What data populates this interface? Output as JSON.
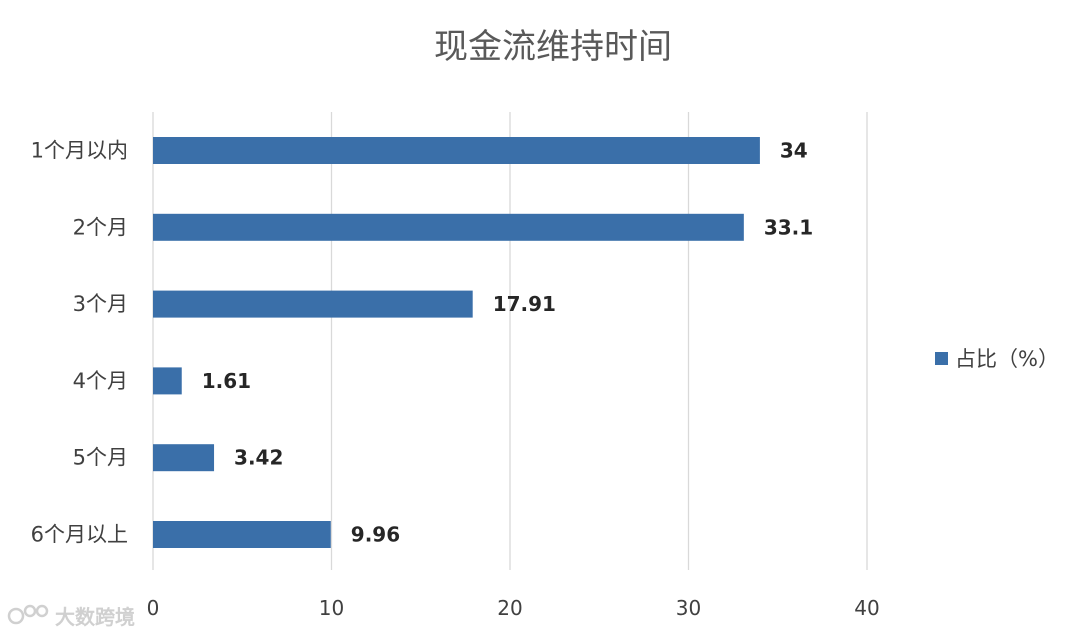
{
  "chart_data": {
    "type": "bar",
    "orientation": "horizontal",
    "title": "现金流维持时间",
    "categories": [
      "1个月以内",
      "2个月",
      "3个月",
      "4个月",
      "5个月",
      "6个月以上"
    ],
    "series": [
      {
        "name": "占比（%）",
        "values": [
          34,
          33.1,
          17.91,
          1.61,
          3.42,
          9.96
        ]
      }
    ],
    "data_labels": [
      "34",
      "33.1",
      "17.91",
      "1.61",
      "3.42",
      "9.96"
    ],
    "xlim": [
      0,
      40
    ],
    "xticks": [
      0,
      10,
      20,
      30,
      40
    ],
    "grid": true,
    "legend_position": "right",
    "colors": {
      "bar": "#3a6fa9",
      "grid": "#d9d9d9"
    }
  },
  "watermark": {
    "text": "大数跨境"
  }
}
